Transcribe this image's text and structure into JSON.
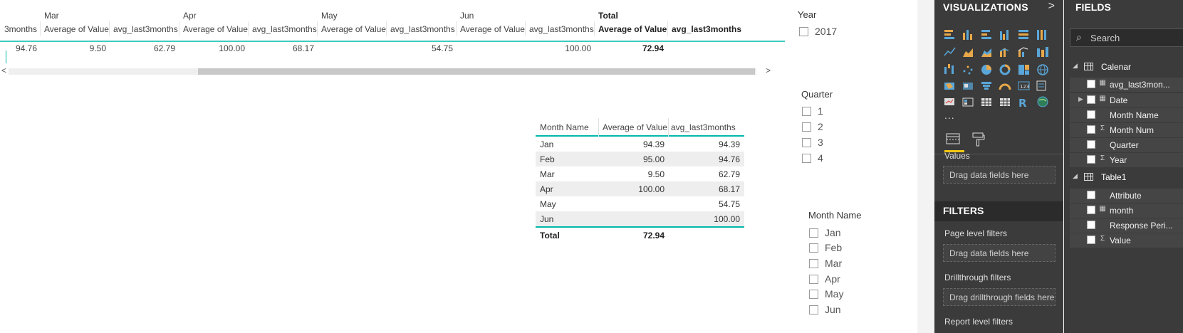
{
  "matrix": {
    "months": [
      "Mar",
      "Apr",
      "May",
      "Jun",
      "Total"
    ],
    "headers": [
      "3months",
      "Average of Value",
      "avg_last3months",
      "Average of Value",
      "avg_last3months",
      "Average of Value",
      "avg_last3months",
      "Average of Value",
      "avg_last3months",
      "Average of Value",
      "avg_last3months"
    ],
    "values": [
      "94.76",
      "9.50",
      "62.79",
      "100.00",
      "68.17",
      "",
      "54.75",
      "",
      "100.00",
      "72.94",
      ""
    ],
    "scroll_left": "<",
    "scroll_right": ">"
  },
  "table": {
    "headers": [
      "Month Name",
      "Average of Value",
      "avg_last3months"
    ],
    "rows": [
      {
        "month": "Jan",
        "avg": "94.39",
        "last3": "94.39"
      },
      {
        "month": "Feb",
        "avg": "95.00",
        "last3": "94.76"
      },
      {
        "month": "Mar",
        "avg": "9.50",
        "last3": "62.79"
      },
      {
        "month": "Apr",
        "avg": "100.00",
        "last3": "68.17"
      },
      {
        "month": "May",
        "avg": "",
        "last3": "54.75"
      },
      {
        "month": "Jun",
        "avg": "",
        "last3": "100.00"
      }
    ],
    "total": {
      "label": "Total",
      "avg": "72.94",
      "last3": ""
    }
  },
  "slicers": {
    "year": {
      "title": "Year",
      "items": [
        "2017"
      ]
    },
    "quarter": {
      "title": "Quarter",
      "items": [
        "1",
        "2",
        "3",
        "4"
      ]
    },
    "month": {
      "title": "Month Name",
      "items": [
        "Jan",
        "Feb",
        "Mar",
        "Apr",
        "May",
        "Jun"
      ]
    }
  },
  "visualizations": {
    "title": "VISUALIZATIONS",
    "chevron": ">",
    "more": "...",
    "values_label": "Values",
    "values_drop": "Drag data fields here",
    "filters_title": "FILTERS",
    "page_filters": "Page level filters",
    "page_drop": "Drag data fields here",
    "drill_filters": "Drillthrough filters",
    "drill_drop": "Drag drillthrough fields here",
    "report_filters": "Report level filters"
  },
  "fields": {
    "title": "FIELDS",
    "search_placeholder": "Search",
    "tables": [
      {
        "name": "Calenar",
        "fields": [
          {
            "name": "avg_last3mon...",
            "type": "calc",
            "expand": false
          },
          {
            "name": "Date",
            "type": "calendar",
            "expand": true
          },
          {
            "name": "Month Name",
            "type": "",
            "expand": false
          },
          {
            "name": "Month Num",
            "type": "sigma",
            "expand": false
          },
          {
            "name": "Quarter",
            "type": "",
            "expand": false
          },
          {
            "name": "Year",
            "type": "sigma",
            "expand": false
          }
        ]
      },
      {
        "name": "Table1",
        "fields": [
          {
            "name": "Attribute",
            "type": "",
            "expand": false
          },
          {
            "name": "month",
            "type": "calendar",
            "expand": false
          },
          {
            "name": "Response Peri...",
            "type": "",
            "expand": false
          },
          {
            "name": "Value",
            "type": "sigma",
            "expand": false
          }
        ]
      }
    ]
  },
  "colors": {
    "accent": "#01b8aa",
    "pane_bg": "#3b3b3b",
    "active_tab": "#f2c811"
  }
}
